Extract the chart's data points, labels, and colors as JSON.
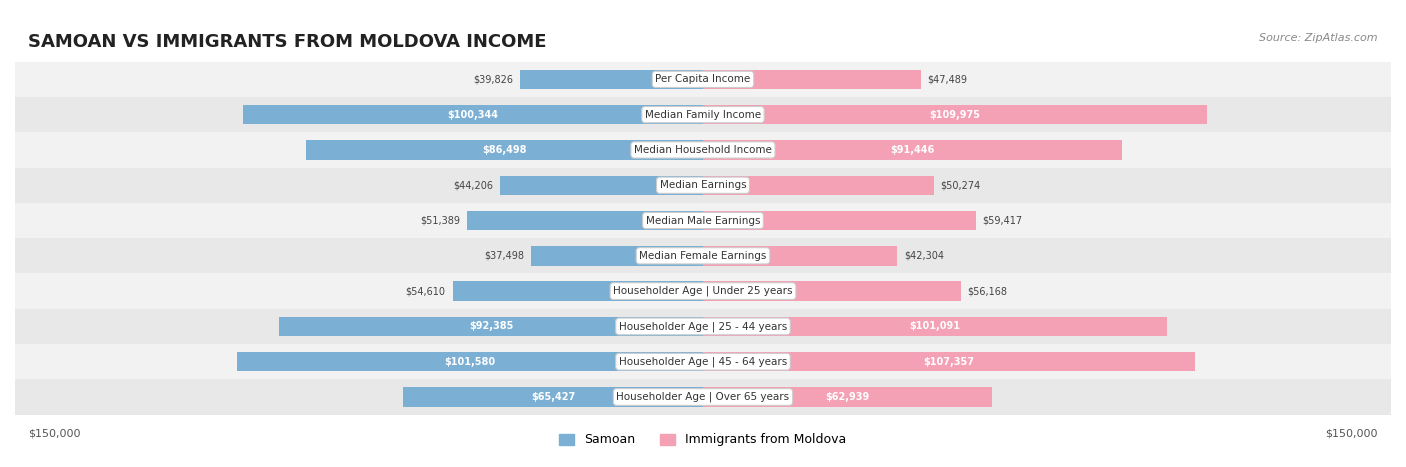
{
  "title": "SAMOAN VS IMMIGRANTS FROM MOLDOVA INCOME",
  "source": "Source: ZipAtlas.com",
  "categories": [
    "Per Capita Income",
    "Median Family Income",
    "Median Household Income",
    "Median Earnings",
    "Median Male Earnings",
    "Median Female Earnings",
    "Householder Age | Under 25 years",
    "Householder Age | 25 - 44 years",
    "Householder Age | 45 - 64 years",
    "Householder Age | Over 65 years"
  ],
  "samoan_values": [
    39826,
    100344,
    86498,
    44206,
    51389,
    37498,
    54610,
    92385,
    101580,
    65427
  ],
  "moldova_values": [
    47489,
    109975,
    91446,
    50274,
    59417,
    42304,
    56168,
    101091,
    107357,
    62939
  ],
  "samoan_color": "#7bafd4",
  "samoan_color_dark": "#5b9bc8",
  "moldova_color": "#f4a0b5",
  "moldova_color_dark": "#f07090",
  "max_value": 150000,
  "background_color": "#ffffff",
  "row_bg_color": "#f0f0f0",
  "row_alt_bg_color": "#ffffff",
  "label_bg_color": "#ffffff",
  "bar_height": 0.55,
  "xlabel_left": "$150,000",
  "xlabel_right": "$150,000",
  "legend_label_samoan": "Samoan",
  "legend_label_moldova": "Immigrants from Moldova"
}
